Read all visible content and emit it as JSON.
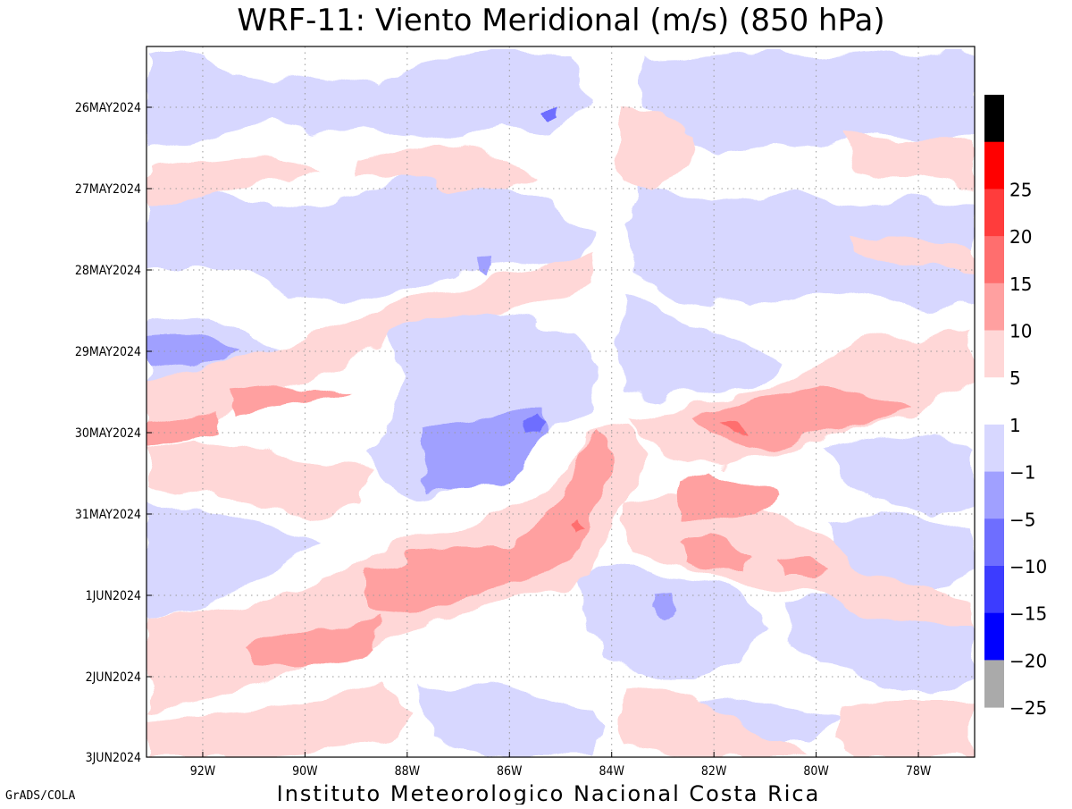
{
  "chart_data": {
    "type": "heatmap",
    "title": "WRF-11: Viento Meridional (m/s) (850 hPa)",
    "variable": "Viento Meridional",
    "units": "m/s",
    "level": "850 hPa",
    "x_ticks": [
      "92W",
      "90W",
      "88W",
      "86W",
      "84W",
      "82W",
      "80W",
      "78W"
    ],
    "x_values": [
      -92,
      -90,
      -88,
      -86,
      -84,
      -82,
      -80,
      -78
    ],
    "xlim": [
      -93.1,
      -76.9
    ],
    "y_ticks": [
      "26MAY2024",
      "27MAY2024",
      "28MAY2024",
      "29MAY2024",
      "30MAY2024",
      "31MAY2024",
      "1JUN2024",
      "2JUN2024",
      "3JUN2024"
    ],
    "y_order": "top-to-bottom",
    "grid": true,
    "colorbar": {
      "levels": [
        {
          "label": "",
          "color": "#000000"
        },
        {
          "label": "25",
          "color": "#ff0000"
        },
        {
          "label": "20",
          "color": "#ff3c3c"
        },
        {
          "label": "15",
          "color": "#ff6e6e"
        },
        {
          "label": "10",
          "color": "#ffa0a0"
        },
        {
          "label": "5",
          "color": "#ffd7d7"
        },
        {
          "label": "1",
          "color": "#ffffff"
        },
        {
          "label": "-1",
          "color": "#d7d7ff"
        },
        {
          "label": "-5",
          "color": "#a0a0ff"
        },
        {
          "label": "-10",
          "color": "#6e6eff"
        },
        {
          "label": "-15",
          "color": "#3c3cff"
        },
        {
          "label": "-20",
          "color": "#0000ff"
        },
        {
          "label": "-25",
          "color": "#aaaaaa"
        }
      ]
    },
    "colors": {
      "pos_light": "#ffd7d7",
      "pos_medium": "#ffa0a0",
      "pos_strong": "#ff6e6e",
      "neg_light": "#d7d7ff",
      "neg_medium": "#a0a0ff",
      "neg_strong": "#6e6eff"
    }
  },
  "footer": {
    "institution": "Instituto Meteorologico Nacional Costa Rica",
    "credit": "GrADS/COLA"
  }
}
